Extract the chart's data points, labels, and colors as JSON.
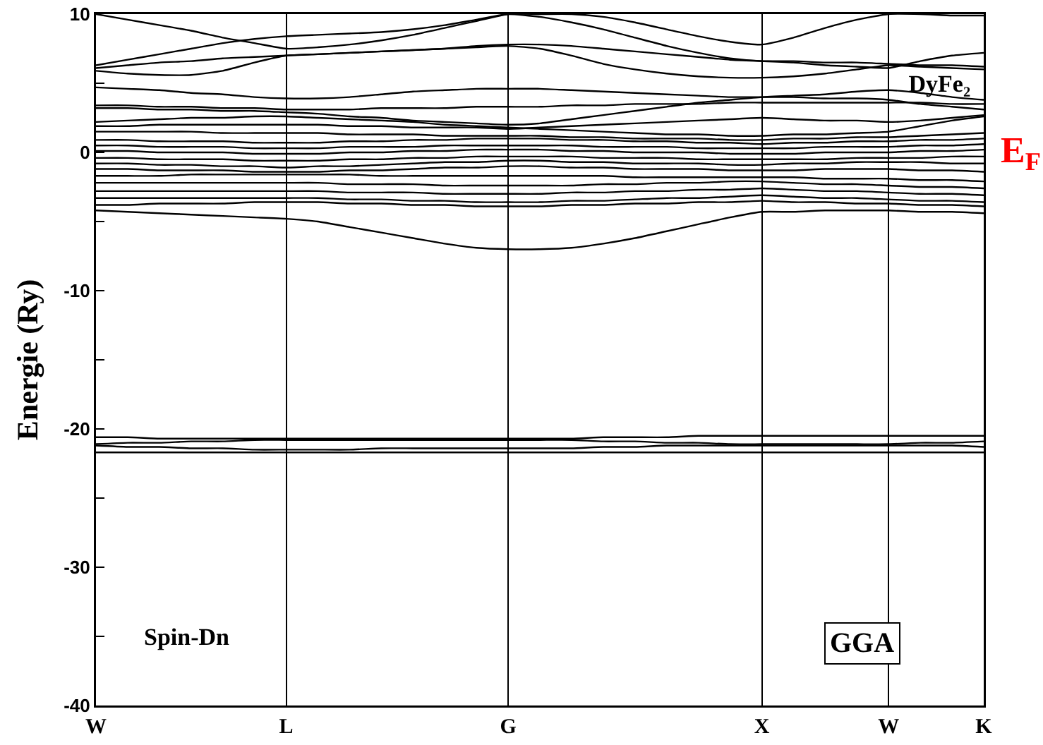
{
  "chart_data": {
    "type": "line",
    "title": "DyFe₂",
    "ylabel": "Energie (Ry)",
    "annotations": [
      "E$_{F}$",
      "Spin-Dn",
      "GGA"
    ],
    "categories": [
      "W",
      null,
      null,
      null,
      null,
      null,
      "L",
      null,
      null,
      null,
      null,
      null,
      null,
      "G",
      null,
      null,
      null,
      null,
      null,
      null,
      null,
      "X",
      null,
      null,
      null,
      "W",
      null,
      null,
      "K"
    ],
    "ylim": [
      -40,
      10
    ],
    "yticks": [
      10,
      {
        "value": 5,
        "label": null
      },
      0,
      {
        "value": -5,
        "label": null
      },
      -10,
      {
        "value": -15,
        "label": null
      },
      -20,
      {
        "value": -25,
        "label": null
      },
      -30,
      {
        "value": -35,
        "label": null
      },
      -40
    ],
    "grid": "x",
    "series": [
      {
        "color": "#000000",
        "values": [
          10,
          9.6,
          9.2,
          8.8,
          8.3,
          7.9,
          7.5,
          7.6,
          7.8,
          8.1,
          8.5,
          9.0,
          9.5,
          10,
          10,
          10,
          9.8,
          9.4,
          8.9,
          8.4,
          8.0,
          7.8,
          8.3,
          9.0,
          9.6,
          10,
          10,
          9.9,
          9.9
        ]
      },
      {
        "color": "#000000",
        "values": [
          6.3,
          6.7,
          7.1,
          7.5,
          7.9,
          8.2,
          8.4,
          8.5,
          8.6,
          8.7,
          8.9,
          9.2,
          9.6,
          10,
          9.8,
          9.4,
          8.9,
          8.3,
          7.7,
          7.2,
          6.8,
          6.6,
          6.6,
          6.5,
          6.5,
          6.4,
          6.3,
          6.3,
          6.2
        ]
      },
      {
        "color": "#000000",
        "values": [
          6.1,
          6.3,
          6.5,
          6.6,
          6.8,
          6.9,
          7.0,
          7.1,
          7.2,
          7.3,
          7.4,
          7.5,
          7.7,
          7.8,
          7.8,
          7.7,
          7.5,
          7.3,
          7.1,
          6.9,
          6.7,
          6.6,
          6.5,
          6.3,
          6.2,
          6.1,
          6.6,
          7.0,
          7.2
        ]
      },
      {
        "color": "#000000",
        "values": [
          5.9,
          5.7,
          5.6,
          5.6,
          5.9,
          6.5,
          7.0,
          7.1,
          7.2,
          7.3,
          7.4,
          7.5,
          7.6,
          7.7,
          7.5,
          7.0,
          6.4,
          6.0,
          5.7,
          5.5,
          5.4,
          5.4,
          5.5,
          5.7,
          6.0,
          6.3,
          6.2,
          6.1,
          6.0
        ]
      },
      {
        "color": "#000000",
        "values": [
          4.7,
          4.6,
          4.5,
          4.3,
          4.2,
          4.0,
          3.9,
          3.9,
          4.0,
          4.2,
          4.4,
          4.5,
          4.6,
          4.6,
          4.6,
          4.5,
          4.4,
          4.3,
          4.2,
          4.1,
          4.0,
          4.0,
          4.0,
          3.9,
          3.9,
          3.8,
          3.5,
          3.3,
          3.1
        ]
      },
      {
        "color": "#000000",
        "values": [
          3.2,
          3.2,
          3.1,
          3.1,
          3.0,
          3.0,
          2.9,
          2.8,
          2.6,
          2.5,
          2.3,
          2.2,
          2.1,
          2.0,
          2.1,
          2.4,
          2.7,
          3.0,
          3.3,
          3.6,
          3.8,
          4.0,
          4.1,
          4.2,
          4.4,
          4.5,
          4.3,
          4.0,
          3.8
        ]
      },
      {
        "color": "#000000",
        "values": [
          3.4,
          3.4,
          3.3,
          3.3,
          3.2,
          3.2,
          3.1,
          3.1,
          3.1,
          3.2,
          3.2,
          3.2,
          3.3,
          3.3,
          3.3,
          3.4,
          3.4,
          3.5,
          3.5,
          3.5,
          3.6,
          3.6,
          3.6,
          3.6,
          3.6,
          3.6,
          3.6,
          3.5,
          3.5
        ]
      },
      {
        "color": "#000000",
        "values": [
          2.2,
          2.3,
          2.4,
          2.5,
          2.5,
          2.6,
          2.6,
          2.5,
          2.4,
          2.3,
          2.2,
          2.0,
          1.9,
          1.8,
          1.7,
          1.6,
          1.5,
          1.4,
          1.3,
          1.3,
          1.2,
          1.2,
          1.3,
          1.3,
          1.4,
          1.5,
          1.9,
          2.3,
          2.6
        ]
      },
      {
        "color": "#000000",
        "values": [
          1.9,
          1.9,
          2.0,
          2.0,
          2.0,
          2.0,
          2.0,
          2.0,
          1.9,
          1.9,
          1.8,
          1.8,
          1.8,
          1.7,
          1.8,
          1.9,
          2.0,
          2.1,
          2.2,
          2.3,
          2.4,
          2.5,
          2.4,
          2.3,
          2.3,
          2.2,
          2.3,
          2.5,
          2.7
        ]
      },
      {
        "color": "#000000",
        "values": [
          1.5,
          1.5,
          1.5,
          1.5,
          1.4,
          1.4,
          1.4,
          1.4,
          1.3,
          1.3,
          1.3,
          1.2,
          1.2,
          1.2,
          1.2,
          1.1,
          1.1,
          1.0,
          1.0,
          1.0,
          0.9,
          0.9,
          1.0,
          1.0,
          1.1,
          1.1,
          1.2,
          1.3,
          1.4
        ]
      },
      {
        "color": "#000000",
        "values": [
          0.9,
          0.9,
          0.8,
          0.8,
          0.8,
          0.7,
          0.7,
          0.7,
          0.8,
          0.8,
          0.9,
          0.9,
          1.0,
          1.0,
          1.0,
          0.9,
          0.9,
          0.8,
          0.8,
          0.7,
          0.7,
          0.6,
          0.7,
          0.7,
          0.8,
          0.8,
          0.9,
          0.9,
          1.0
        ]
      },
      {
        "color": "#000000",
        "values": [
          0.5,
          0.5,
          0.4,
          0.4,
          0.4,
          0.3,
          0.3,
          0.3,
          0.4,
          0.4,
          0.4,
          0.5,
          0.5,
          0.5,
          0.5,
          0.5,
          0.4,
          0.4,
          0.4,
          0.3,
          0.3,
          0.3,
          0.3,
          0.4,
          0.4,
          0.4,
          0.5,
          0.5,
          0.6
        ]
      },
      {
        "color": "#000000",
        "values": [
          0.1,
          0.1,
          0.0,
          0.0,
          0.0,
          -0.1,
          -0.1,
          -0.1,
          0.0,
          0.0,
          0.1,
          0.1,
          0.2,
          0.2,
          0.2,
          0.1,
          0.1,
          0.0,
          0.0,
          0.0,
          -0.1,
          -0.1,
          -0.1,
          0.0,
          0.0,
          0.0,
          0.1,
          0.1,
          0.2
        ]
      },
      {
        "color": "#000000",
        "values": [
          -0.4,
          -0.4,
          -0.5,
          -0.5,
          -0.5,
          -0.6,
          -0.6,
          -0.6,
          -0.5,
          -0.5,
          -0.4,
          -0.4,
          -0.3,
          -0.3,
          -0.3,
          -0.3,
          -0.4,
          -0.4,
          -0.4,
          -0.5,
          -0.5,
          -0.5,
          -0.5,
          -0.5,
          -0.4,
          -0.4,
          -0.4,
          -0.3,
          -0.3
        ]
      },
      {
        "color": "#000000",
        "values": [
          -0.8,
          -0.8,
          -0.9,
          -0.9,
          -1.0,
          -1.0,
          -1.1,
          -1.0,
          -1.0,
          -0.9,
          -0.8,
          -0.7,
          -0.7,
          -0.6,
          -0.6,
          -0.7,
          -0.7,
          -0.8,
          -0.8,
          -0.8,
          -0.9,
          -0.9,
          -0.8,
          -0.8,
          -0.7,
          -0.7,
          -0.7,
          -0.8,
          -0.8
        ]
      },
      {
        "color": "#000000",
        "values": [
          -1.2,
          -1.2,
          -1.3,
          -1.3,
          -1.3,
          -1.4,
          -1.4,
          -1.4,
          -1.3,
          -1.3,
          -1.2,
          -1.1,
          -1.1,
          -1.0,
          -1.0,
          -1.1,
          -1.1,
          -1.2,
          -1.2,
          -1.2,
          -1.3,
          -1.3,
          -1.3,
          -1.2,
          -1.2,
          -1.2,
          -1.3,
          -1.3,
          -1.4
        ]
      },
      {
        "color": "#000000",
        "values": [
          -1.7,
          -1.7,
          -1.7,
          -1.6,
          -1.6,
          -1.6,
          -1.6,
          -1.6,
          -1.6,
          -1.7,
          -1.7,
          -1.7,
          -1.7,
          -1.7,
          -1.7,
          -1.7,
          -1.7,
          -1.8,
          -1.8,
          -1.8,
          -1.8,
          -1.8,
          -1.8,
          -1.9,
          -1.9,
          -1.9,
          -2.0,
          -2.0,
          -2.1
        ]
      },
      {
        "color": "#000000",
        "values": [
          -2.2,
          -2.2,
          -2.2,
          -2.2,
          -2.2,
          -2.2,
          -2.2,
          -2.2,
          -2.3,
          -2.3,
          -2.3,
          -2.4,
          -2.4,
          -2.4,
          -2.4,
          -2.4,
          -2.3,
          -2.3,
          -2.2,
          -2.2,
          -2.1,
          -2.1,
          -2.2,
          -2.3,
          -2.3,
          -2.4,
          -2.5,
          -2.5,
          -2.6
        ]
      },
      {
        "color": "#000000",
        "values": [
          -2.8,
          -2.8,
          -2.8,
          -2.8,
          -2.8,
          -2.8,
          -2.8,
          -2.8,
          -2.9,
          -2.9,
          -2.9,
          -3.0,
          -3.0,
          -3.0,
          -3.0,
          -2.9,
          -2.9,
          -2.8,
          -2.8,
          -2.7,
          -2.7,
          -2.6,
          -2.7,
          -2.8,
          -2.8,
          -2.9,
          -3.0,
          -3.0,
          -3.1
        ]
      },
      {
        "color": "#000000",
        "values": [
          -3.3,
          -3.3,
          -3.3,
          -3.3,
          -3.3,
          -3.3,
          -3.3,
          -3.3,
          -3.4,
          -3.4,
          -3.5,
          -3.5,
          -3.6,
          -3.6,
          -3.6,
          -3.5,
          -3.5,
          -3.4,
          -3.3,
          -3.3,
          -3.2,
          -3.1,
          -3.2,
          -3.3,
          -3.3,
          -3.4,
          -3.5,
          -3.5,
          -3.6
        ]
      },
      {
        "color": "#000000",
        "values": [
          -3.8,
          -3.8,
          -3.7,
          -3.7,
          -3.7,
          -3.6,
          -3.6,
          -3.6,
          -3.7,
          -3.7,
          -3.8,
          -3.8,
          -3.9,
          -3.9,
          -3.9,
          -3.8,
          -3.8,
          -3.7,
          -3.7,
          -3.6,
          -3.6,
          -3.5,
          -3.6,
          -3.6,
          -3.7,
          -3.7,
          -3.8,
          -3.8,
          -3.9
        ]
      },
      {
        "color": "#000000",
        "values": [
          -4.2,
          -4.3,
          -4.4,
          -4.5,
          -4.6,
          -4.7,
          -4.8,
          -5.0,
          -5.4,
          -5.8,
          -6.2,
          -6.6,
          -6.9,
          -7.0,
          -7.0,
          -6.9,
          -6.6,
          -6.2,
          -5.7,
          -5.2,
          -4.7,
          -4.3,
          -4.3,
          -4.2,
          -4.2,
          -4.2,
          -4.3,
          -4.3,
          -4.4
        ]
      },
      {
        "color": "#000000",
        "values": [
          -20.6,
          -20.6,
          -20.7,
          -20.7,
          -20.7,
          -20.7,
          -20.7,
          -20.7,
          -20.7,
          -20.7,
          -20.7,
          -20.7,
          -20.7,
          -20.7,
          -20.7,
          -20.7,
          -20.6,
          -20.6,
          -20.6,
          -20.5,
          -20.5,
          -20.5,
          -20.5,
          -20.5,
          -20.5,
          -20.5,
          -20.5,
          -20.5,
          -20.5
        ]
      },
      {
        "color": "#000000",
        "values": [
          -21.1,
          -21.0,
          -21.0,
          -20.9,
          -20.9,
          -20.8,
          -20.8,
          -20.8,
          -20.8,
          -20.8,
          -20.8,
          -20.8,
          -20.8,
          -20.8,
          -20.8,
          -20.8,
          -20.9,
          -20.9,
          -21.0,
          -21.0,
          -21.1,
          -21.1,
          -21.1,
          -21.1,
          -21.1,
          -21.1,
          -21.0,
          -21.0,
          -20.9
        ]
      },
      {
        "color": "#000000",
        "values": [
          -21.2,
          -21.3,
          -21.3,
          -21.4,
          -21.4,
          -21.5,
          -21.5,
          -21.5,
          -21.5,
          -21.4,
          -21.4,
          -21.4,
          -21.4,
          -21.4,
          -21.4,
          -21.4,
          -21.3,
          -21.3,
          -21.2,
          -21.2,
          -21.2,
          -21.2,
          -21.2,
          -21.2,
          -21.2,
          -21.2,
          -21.2,
          -21.2,
          -21.3
        ]
      },
      {
        "color": "#000000",
        "values": [
          -21.7,
          -21.7,
          -21.7,
          -21.7,
          -21.7,
          -21.7,
          -21.7,
          -21.7,
          -21.7,
          -21.7,
          -21.7,
          -21.7,
          -21.7,
          -21.7,
          -21.7,
          -21.7,
          -21.7,
          -21.7,
          -21.7,
          -21.7,
          -21.7,
          -21.7,
          -21.7,
          -21.7,
          -21.7,
          -21.7,
          -21.7,
          -21.7,
          -21.7
        ]
      }
    ]
  }
}
